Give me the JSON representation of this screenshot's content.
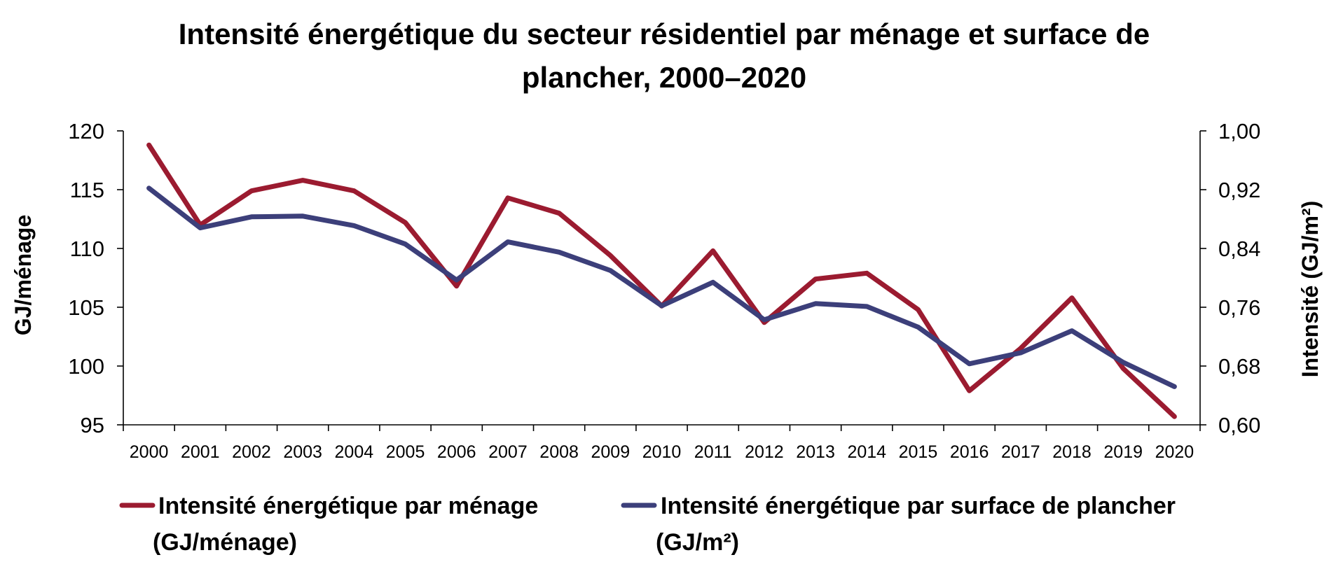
{
  "chart_data": {
    "type": "line",
    "title": [
      "Intensité énergétique du secteur résidentiel par ménage et surface de",
      "plancher, 2000–2020"
    ],
    "ylabel_left": "GJ/ménage",
    "ylabel_right": "Intensité (GJ/m²)",
    "xlabel": "",
    "ylim_left": [
      95,
      120
    ],
    "ylim_right": [
      0.6,
      1.0
    ],
    "yticks_left": [
      "120",
      "115",
      "110",
      "105",
      "100",
      "95"
    ],
    "yticks_right": [
      "1,00",
      "0,92",
      "0,84",
      "0,76",
      "0,68",
      "0,60"
    ],
    "grid": false,
    "legend_position": "bottom",
    "categories": [
      "2000",
      "2001",
      "2002",
      "2003",
      "2004",
      "2005",
      "2006",
      "2007",
      "2008",
      "2009",
      "2010",
      "2011",
      "2012",
      "2013",
      "2014",
      "2015",
      "2016",
      "2017",
      "2018",
      "2019",
      "2020"
    ],
    "series": [
      {
        "name": [
          "Intensité énergétique par ménage",
          "(GJ/ménage)"
        ],
        "axis": "left",
        "color": "#9B1B30",
        "values": [
          118.8,
          112.0,
          114.9,
          115.8,
          114.9,
          112.2,
          106.8,
          114.3,
          113.0,
          109.4,
          105.1,
          109.8,
          103.7,
          107.4,
          107.9,
          104.8,
          97.9,
          101.5,
          105.8,
          99.8,
          95.7
        ]
      },
      {
        "name": [
          "Intensité énergétique par surface de plancher",
          "(GJ/m²)"
        ],
        "axis": "right",
        "color": "#3C3F7A",
        "values": [
          0.922,
          0.868,
          0.883,
          0.884,
          0.871,
          0.846,
          0.797,
          0.849,
          0.835,
          0.81,
          0.762,
          0.794,
          0.743,
          0.765,
          0.761,
          0.733,
          0.683,
          0.698,
          0.728,
          0.685,
          0.652
        ]
      }
    ]
  }
}
